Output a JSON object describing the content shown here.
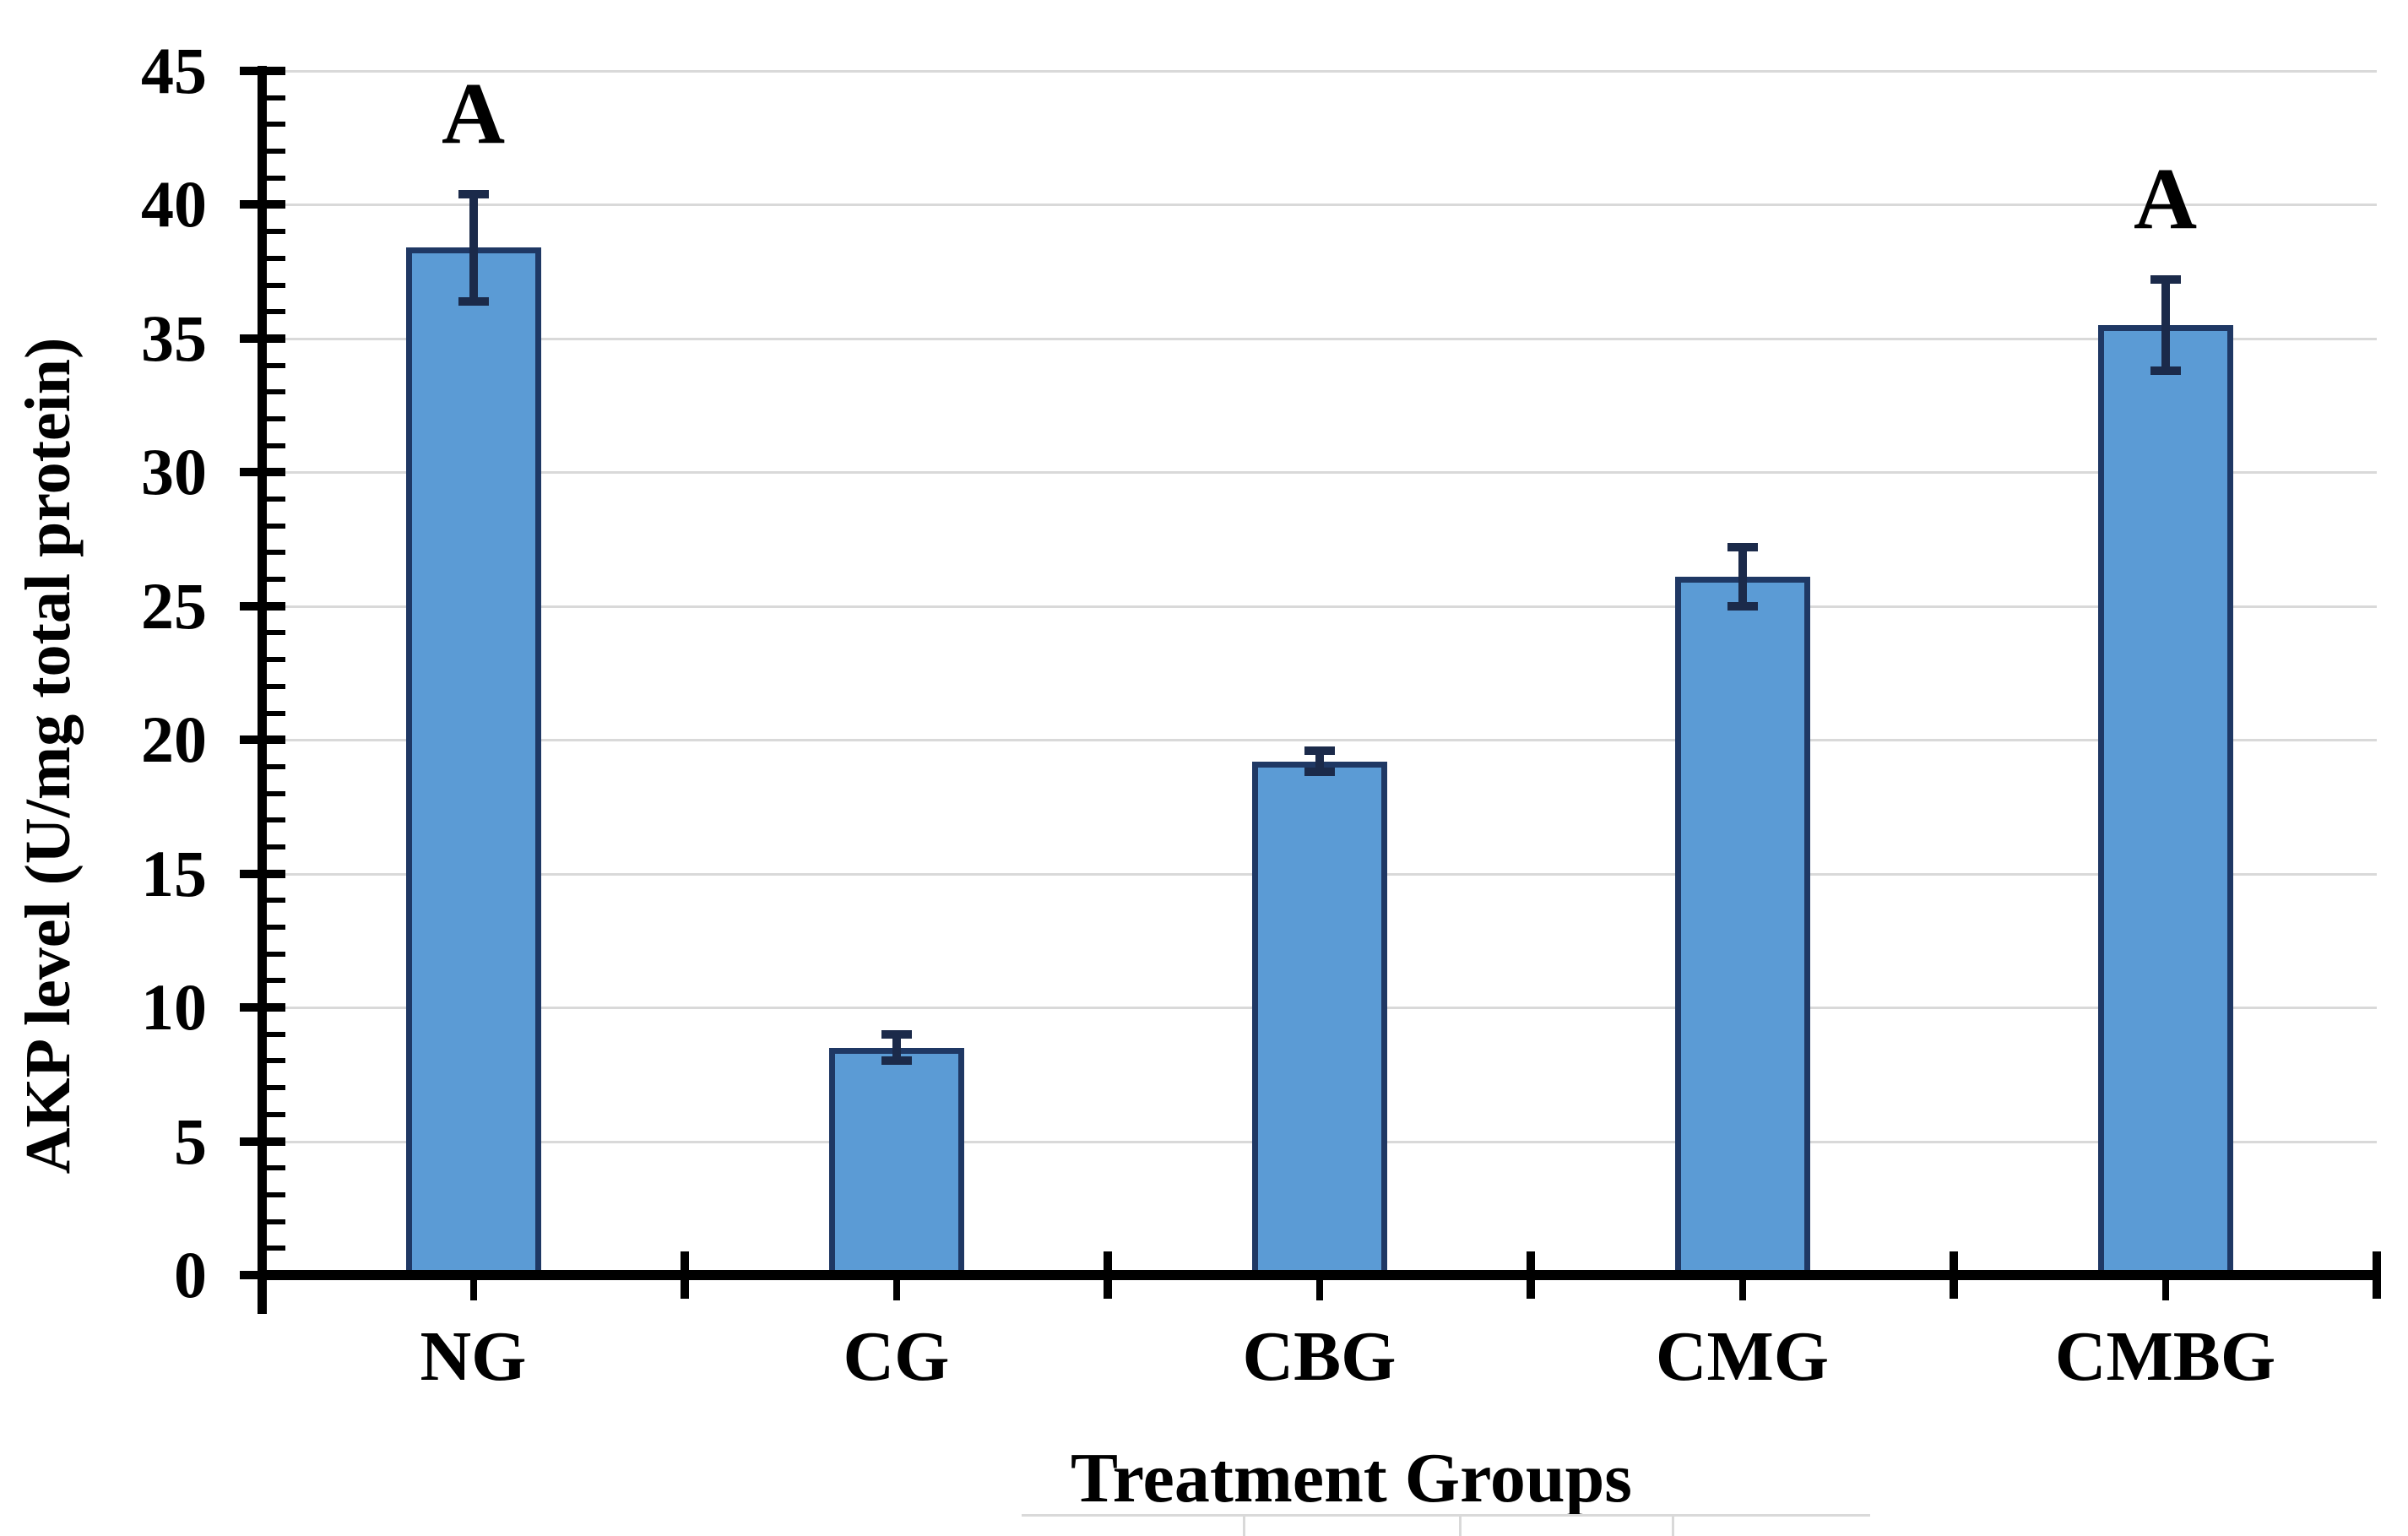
{
  "chart_data": {
    "type": "bar",
    "title": "",
    "xlabel": "Treatment Groups",
    "ylabel": "AKP level (U/mg total protein)",
    "categories": [
      "NG",
      "CG",
      "CBG",
      "CMG",
      "CMBG"
    ],
    "values": [
      38.4,
      8.5,
      19.2,
      26.1,
      35.5
    ],
    "error_bars": [
      2.0,
      0.5,
      0.4,
      1.1,
      1.7
    ],
    "bar_annotations": [
      "A",
      "",
      "",
      "",
      "A"
    ],
    "ylim": [
      0,
      45
    ],
    "y_major_step": 5,
    "y_minor_step": 1,
    "y_tick_labels": [
      "0",
      "5",
      "10",
      "15",
      "20",
      "25",
      "30",
      "35",
      "40",
      "45"
    ],
    "grid": "horizontal-major",
    "legend": "none",
    "colors": {
      "bar_fill": "#5B9BD5",
      "bar_border": "#1F3864",
      "error_bar": "#1B2A4A",
      "gridline": "#D9D9D9",
      "axis": "#000000",
      "background": "#FFFFFF"
    }
  }
}
